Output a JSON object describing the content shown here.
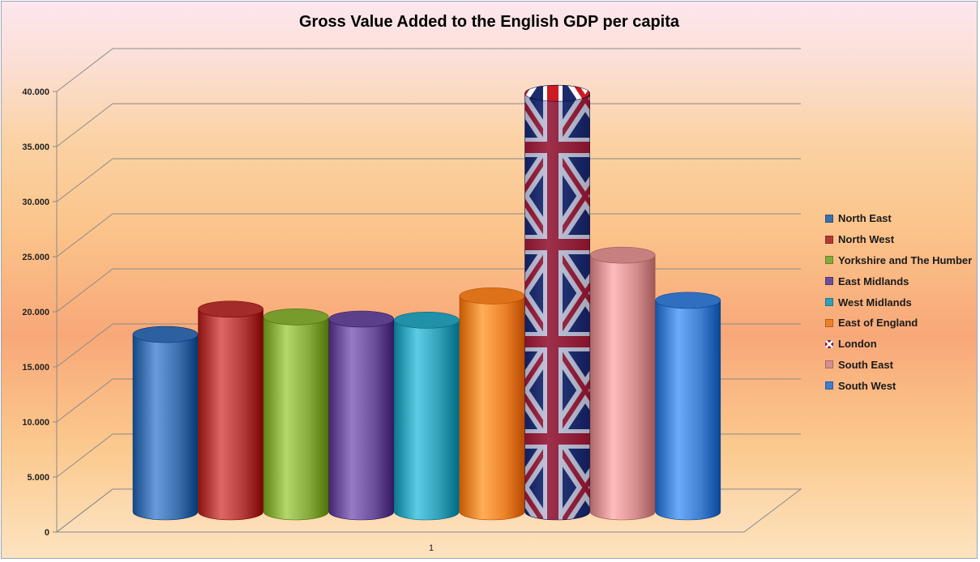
{
  "chart_data": {
    "type": "bar",
    "title": "Gross Value Added to the English GDP per capita",
    "categories": [
      "1"
    ],
    "y_ticks": [
      "0",
      "5.000",
      "10.000",
      "15.000",
      "20.000",
      "25.000",
      "30.000",
      "35.000",
      "40.000"
    ],
    "ylim": [
      0,
      40000
    ],
    "grid": true,
    "legend_position": "right",
    "series": [
      {
        "name": "North East",
        "values": [
          16100
        ],
        "color": "#3c6fad"
      },
      {
        "name": "North West",
        "values": [
          18400
        ],
        "color": "#b23a38"
      },
      {
        "name": "Yorkshire and The Humber",
        "values": [
          17700
        ],
        "color": "#86ab3c"
      },
      {
        "name": "East Midlands",
        "values": [
          17500
        ],
        "color": "#6b4e99"
      },
      {
        "name": "West Midlands",
        "values": [
          17400
        ],
        "color": "#2fa0b7"
      },
      {
        "name": "East of England",
        "values": [
          19600
        ],
        "color": "#ed8129"
      },
      {
        "name": "London",
        "values": [
          38000
        ],
        "color": "#1c2c6b",
        "icon": "union-flag-icon"
      },
      {
        "name": "South East",
        "values": [
          23300
        ],
        "color": "#d68f8f"
      },
      {
        "name": "South West",
        "values": [
          19200
        ],
        "color": "#3f7dcf"
      }
    ]
  }
}
